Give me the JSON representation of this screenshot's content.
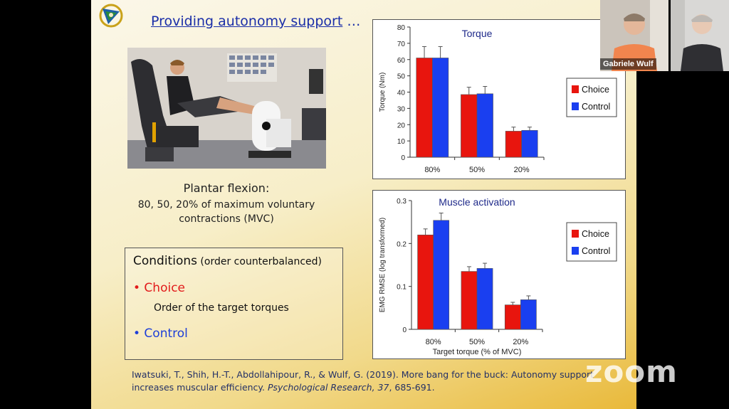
{
  "slide": {
    "title": "Providing autonomy support",
    "title_suffix": " …",
    "caption_title": "Plantar flexion:",
    "caption_line1": "80, 50, 20% of maximum voluntary",
    "caption_line2": "contractions (MVC)",
    "conditions_title": "Conditions",
    "conditions_note": " (order counterbalanced)",
    "condition1": "• Choice",
    "condition1_sub": "Order of the target torques",
    "condition2": "• Control",
    "citation_line1": "Iwatsuki, T., Shih, H.-T., Abdollahipour, R., & Wulf, G. (2019). More bang for the buck: Autonomy support",
    "citation_line2_a": "increases muscular efficiency. ",
    "citation_journal": "Psychological Research, 37",
    "citation_line2_b": ", 685-691."
  },
  "participants": [
    {
      "name": "Gabriele Wulf"
    }
  ],
  "colors": {
    "choice": "#e8150e",
    "control": "#1a3ff0"
  },
  "watermark": "zoom",
  "chart_data": [
    {
      "type": "bar",
      "title": "Torque",
      "ylabel": "Torque (Nm)",
      "xlabel": "",
      "categories": [
        "80%",
        "50%",
        "20%"
      ],
      "ylim": [
        0,
        80
      ],
      "yticks": [
        0,
        10,
        20,
        30,
        40,
        50,
        60,
        70,
        80
      ],
      "legend_position": "right",
      "series": [
        {
          "name": "Choice",
          "values": [
            61,
            38.5,
            16
          ],
          "errors": [
            7,
            4.5,
            2.5
          ]
        },
        {
          "name": "Control",
          "values": [
            61,
            39,
            16.5
          ],
          "errors": [
            7,
            4.5,
            2
          ]
        }
      ]
    },
    {
      "type": "bar",
      "title": "Muscle activation",
      "ylabel": "EMG RMSE (log transformed)",
      "xlabel": "Target torque (% of MVC)",
      "categories": [
        "80%",
        "50%",
        "20%"
      ],
      "ylim": [
        0,
        0.3
      ],
      "yticks": [
        0,
        0.1,
        0.2,
        0.3
      ],
      "legend_position": "right",
      "series": [
        {
          "name": "Choice",
          "values": [
            0.22,
            0.135,
            0.057
          ],
          "errors": [
            0.014,
            0.011,
            0.006
          ]
        },
        {
          "name": "Control",
          "values": [
            0.254,
            0.142,
            0.069
          ],
          "errors": [
            0.017,
            0.012,
            0.009
          ]
        }
      ]
    }
  ]
}
